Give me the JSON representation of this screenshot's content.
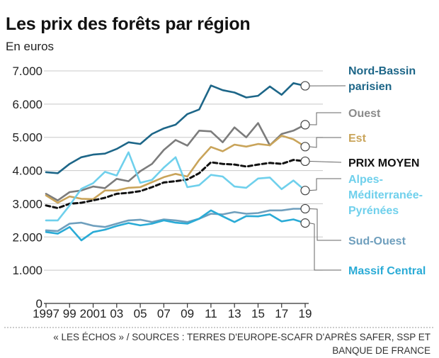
{
  "title": "Les prix des forêts par région",
  "subtitle": "En euros",
  "source": "« LES ÉCHOS » / SOURCES : TERRES D'EUROPE-SCAFR D'APRÈS SAFER, SSP ET BANQUE DE FRANCE",
  "chart_data": {
    "type": "line",
    "title": "Les prix des forêts par région",
    "ylabel": "En euros",
    "ylim": [
      0,
      7000
    ],
    "xlim": [
      1997,
      2019
    ],
    "grid": "horizontal",
    "x": [
      1997,
      1998,
      1999,
      2000,
      2001,
      2002,
      2003,
      2004,
      2005,
      2006,
      2007,
      2008,
      2009,
      2010,
      2011,
      2012,
      2013,
      2014,
      2015,
      2016,
      2017,
      2018,
      2019
    ],
    "x_tick_values": [
      1997,
      1999,
      2001,
      2003,
      2005,
      2007,
      2009,
      2011,
      2013,
      2015,
      2017,
      2019
    ],
    "x_tick_labels": [
      "1997",
      "99",
      "2001",
      "03",
      "05",
      "07",
      "09",
      "11",
      "13",
      "15",
      "17",
      "19"
    ],
    "y_ticks": [
      0,
      1000,
      2000,
      3000,
      4000,
      5000,
      6000,
      7000
    ],
    "y_tick_labels": [
      "0",
      "1.000",
      "2.000",
      "3.000",
      "4.000",
      "5.000",
      "6.000",
      "7.000"
    ],
    "series": [
      {
        "name": "Nord-Bassin parisien",
        "color": "#1d6688",
        "dash": false,
        "values": [
          3950,
          3920,
          4200,
          4400,
          4480,
          4510,
          4650,
          4850,
          4800,
          5100,
          5270,
          5380,
          5700,
          5840,
          6560,
          6420,
          6350,
          6200,
          6250,
          6530,
          6280,
          6630,
          6550
        ]
      },
      {
        "name": "Ouest",
        "color": "#7c7c7c",
        "dash": false,
        "values": [
          3300,
          3100,
          3350,
          3400,
          3520,
          3470,
          3750,
          3680,
          3980,
          4200,
          4620,
          4920,
          4750,
          5200,
          5180,
          4850,
          5300,
          5000,
          5430,
          4760,
          5100,
          5200,
          5380
        ]
      },
      {
        "name": "Est",
        "color": "#c9a45a",
        "dash": false,
        "values": [
          3250,
          3030,
          3220,
          3150,
          3140,
          3400,
          3400,
          3480,
          3500,
          3650,
          3800,
          3900,
          3820,
          4320,
          4710,
          4580,
          4780,
          4720,
          4800,
          4760,
          5050,
          4940,
          4720
        ]
      },
      {
        "name": "PRIX MOYEN",
        "color": "#111111",
        "dash": true,
        "values": [
          2950,
          2870,
          3000,
          3030,
          3100,
          3180,
          3300,
          3330,
          3380,
          3500,
          3640,
          3680,
          3730,
          3920,
          4250,
          4200,
          4180,
          4120,
          4180,
          4230,
          4200,
          4320,
          4280
        ]
      },
      {
        "name": "Alpes-Méditerranée-Pyrénées",
        "color": "#6fd0ec",
        "dash": false,
        "values": [
          2500,
          2500,
          2950,
          3450,
          3620,
          3960,
          3850,
          4550,
          3630,
          3720,
          4090,
          4400,
          3500,
          3560,
          3870,
          3820,
          3520,
          3480,
          3760,
          3790,
          3440,
          3700,
          3400
        ]
      },
      {
        "name": "Sud-Ouest",
        "color": "#6f9fbd",
        "dash": false,
        "values": [
          2200,
          2180,
          2400,
          2430,
          2340,
          2300,
          2400,
          2500,
          2520,
          2450,
          2530,
          2500,
          2450,
          2550,
          2700,
          2680,
          2750,
          2700,
          2720,
          2800,
          2800,
          2850,
          2850
        ]
      },
      {
        "name": "Massif Central",
        "color": "#2aabd6",
        "dash": false,
        "values": [
          2150,
          2100,
          2300,
          1900,
          2150,
          2220,
          2330,
          2420,
          2350,
          2400,
          2500,
          2430,
          2400,
          2550,
          2800,
          2620,
          2450,
          2630,
          2620,
          2680,
          2470,
          2530,
          2420
        ]
      }
    ]
  }
}
